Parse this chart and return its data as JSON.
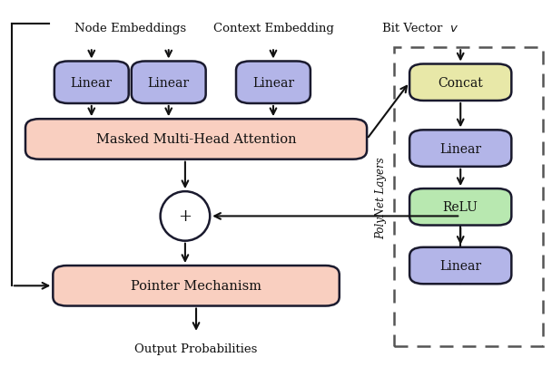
{
  "fig_width": 6.08,
  "fig_height": 4.06,
  "dpi": 100,
  "bg_color": "#ffffff",
  "blue_fill": "#b3b5e8",
  "blue_edge": "#1a1a2e",
  "salmon_fill": "#f9cfc0",
  "salmon_edge": "#1a1a2e",
  "yellow_fill": "#e8e8a8",
  "yellow_edge": "#1a1a2e",
  "green_fill": "#b8e8b0",
  "green_edge": "#1a1a2e",
  "dash_color": "#555555",
  "arrow_color": "#111111",
  "text_color": "#111111",
  "polynet_label": "PolyNet Layers",
  "node_emb_label": "Node Embeddings",
  "ctx_emb_label": "Context Embedding",
  "bit_vec_label": "Bit Vector ",
  "bit_vec_v": "$v$",
  "mha_label": "Masked Multi-Head Attention",
  "pm_label": "Pointer Mechanism",
  "out_label": "Output Probabilities",
  "lin1_label": "Linear",
  "lin2_label": "Linear",
  "lin3_label": "Linear",
  "concat_label": "Concat",
  "linear2_label": "Linear",
  "relu_label": "ReLU",
  "linear3_label": "Linear"
}
